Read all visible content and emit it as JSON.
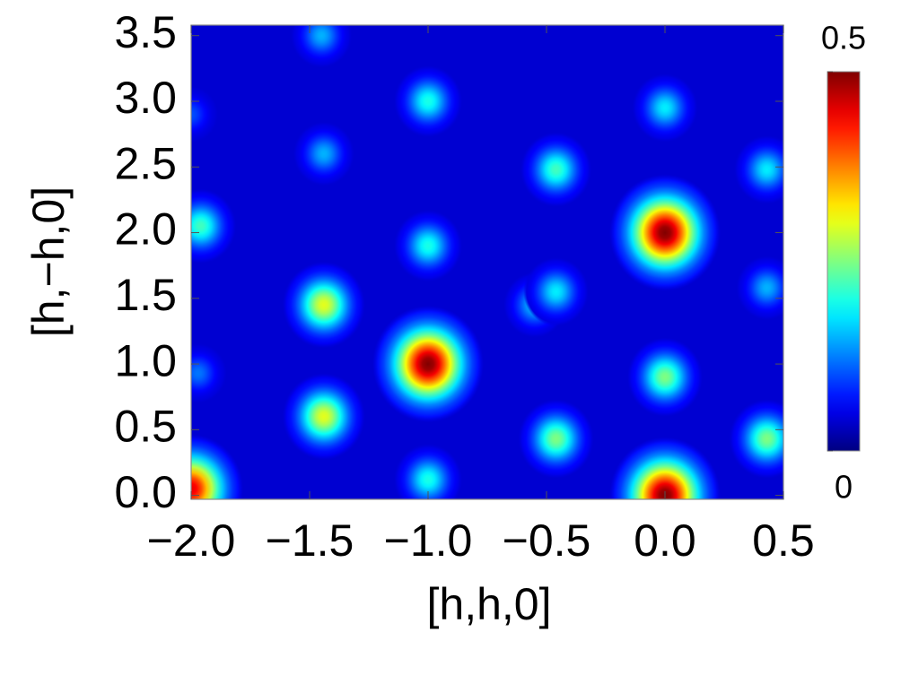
{
  "chart_data": {
    "type": "density",
    "x_label": "[h,h,0]",
    "y_label": "[h,−h,0]",
    "xlim": [
      -2.0,
      0.5
    ],
    "ylim": [
      -0.03,
      3.58
    ],
    "xticks": [
      {
        "value": -2.0,
        "label": "−2.0"
      },
      {
        "value": -1.5,
        "label": "−1.5"
      },
      {
        "value": -1.0,
        "label": "−1.0"
      },
      {
        "value": -0.5,
        "label": "−0.5"
      },
      {
        "value": 0.0,
        "label": "0.0"
      },
      0.5
    ],
    "yticks": [
      {
        "value": 0.0,
        "label": "0.0"
      },
      0.5,
      {
        "value": 1.0,
        "label": "1.0"
      },
      1.5,
      {
        "value": 2.0,
        "label": "2.0"
      },
      2.5,
      {
        "value": 3.0,
        "label": "3.0"
      },
      3.5
    ],
    "zlim": [
      0,
      0.5
    ],
    "zticks": [
      0,
      0.5
    ],
    "colormap": "jet",
    "background": 0.04,
    "x": [
      -1.0,
      0.0,
      0.0,
      -2.0,
      -1.0,
      -1.0,
      -1.0,
      -1.45,
      -1.44,
      -1.44,
      -1.44,
      -0.46,
      -0.46,
      -0.55,
      -0.46,
      0.0,
      0.0,
      0.43,
      0.43,
      0.43,
      -1.96,
      -1.97,
      -2.0
    ],
    "y": [
      1.0,
      0.0,
      2.0,
      0.05,
      0.12,
      1.9,
      3.0,
      3.5,
      2.6,
      1.45,
      0.6,
      0.43,
      2.48,
      1.45,
      1.55,
      2.95,
      0.9,
      0.43,
      2.48,
      1.58,
      2.05,
      0.93,
      2.9
    ],
    "values": [
      0.5,
      0.5,
      0.5,
      0.45,
      0.2,
      0.2,
      0.2,
      0.15,
      0.15,
      0.3,
      0.3,
      0.25,
      0.22,
      0.16,
      0.18,
      0.18,
      0.25,
      0.25,
      0.18,
      0.15,
      0.22,
      0.12,
      0.1
    ]
  }
}
